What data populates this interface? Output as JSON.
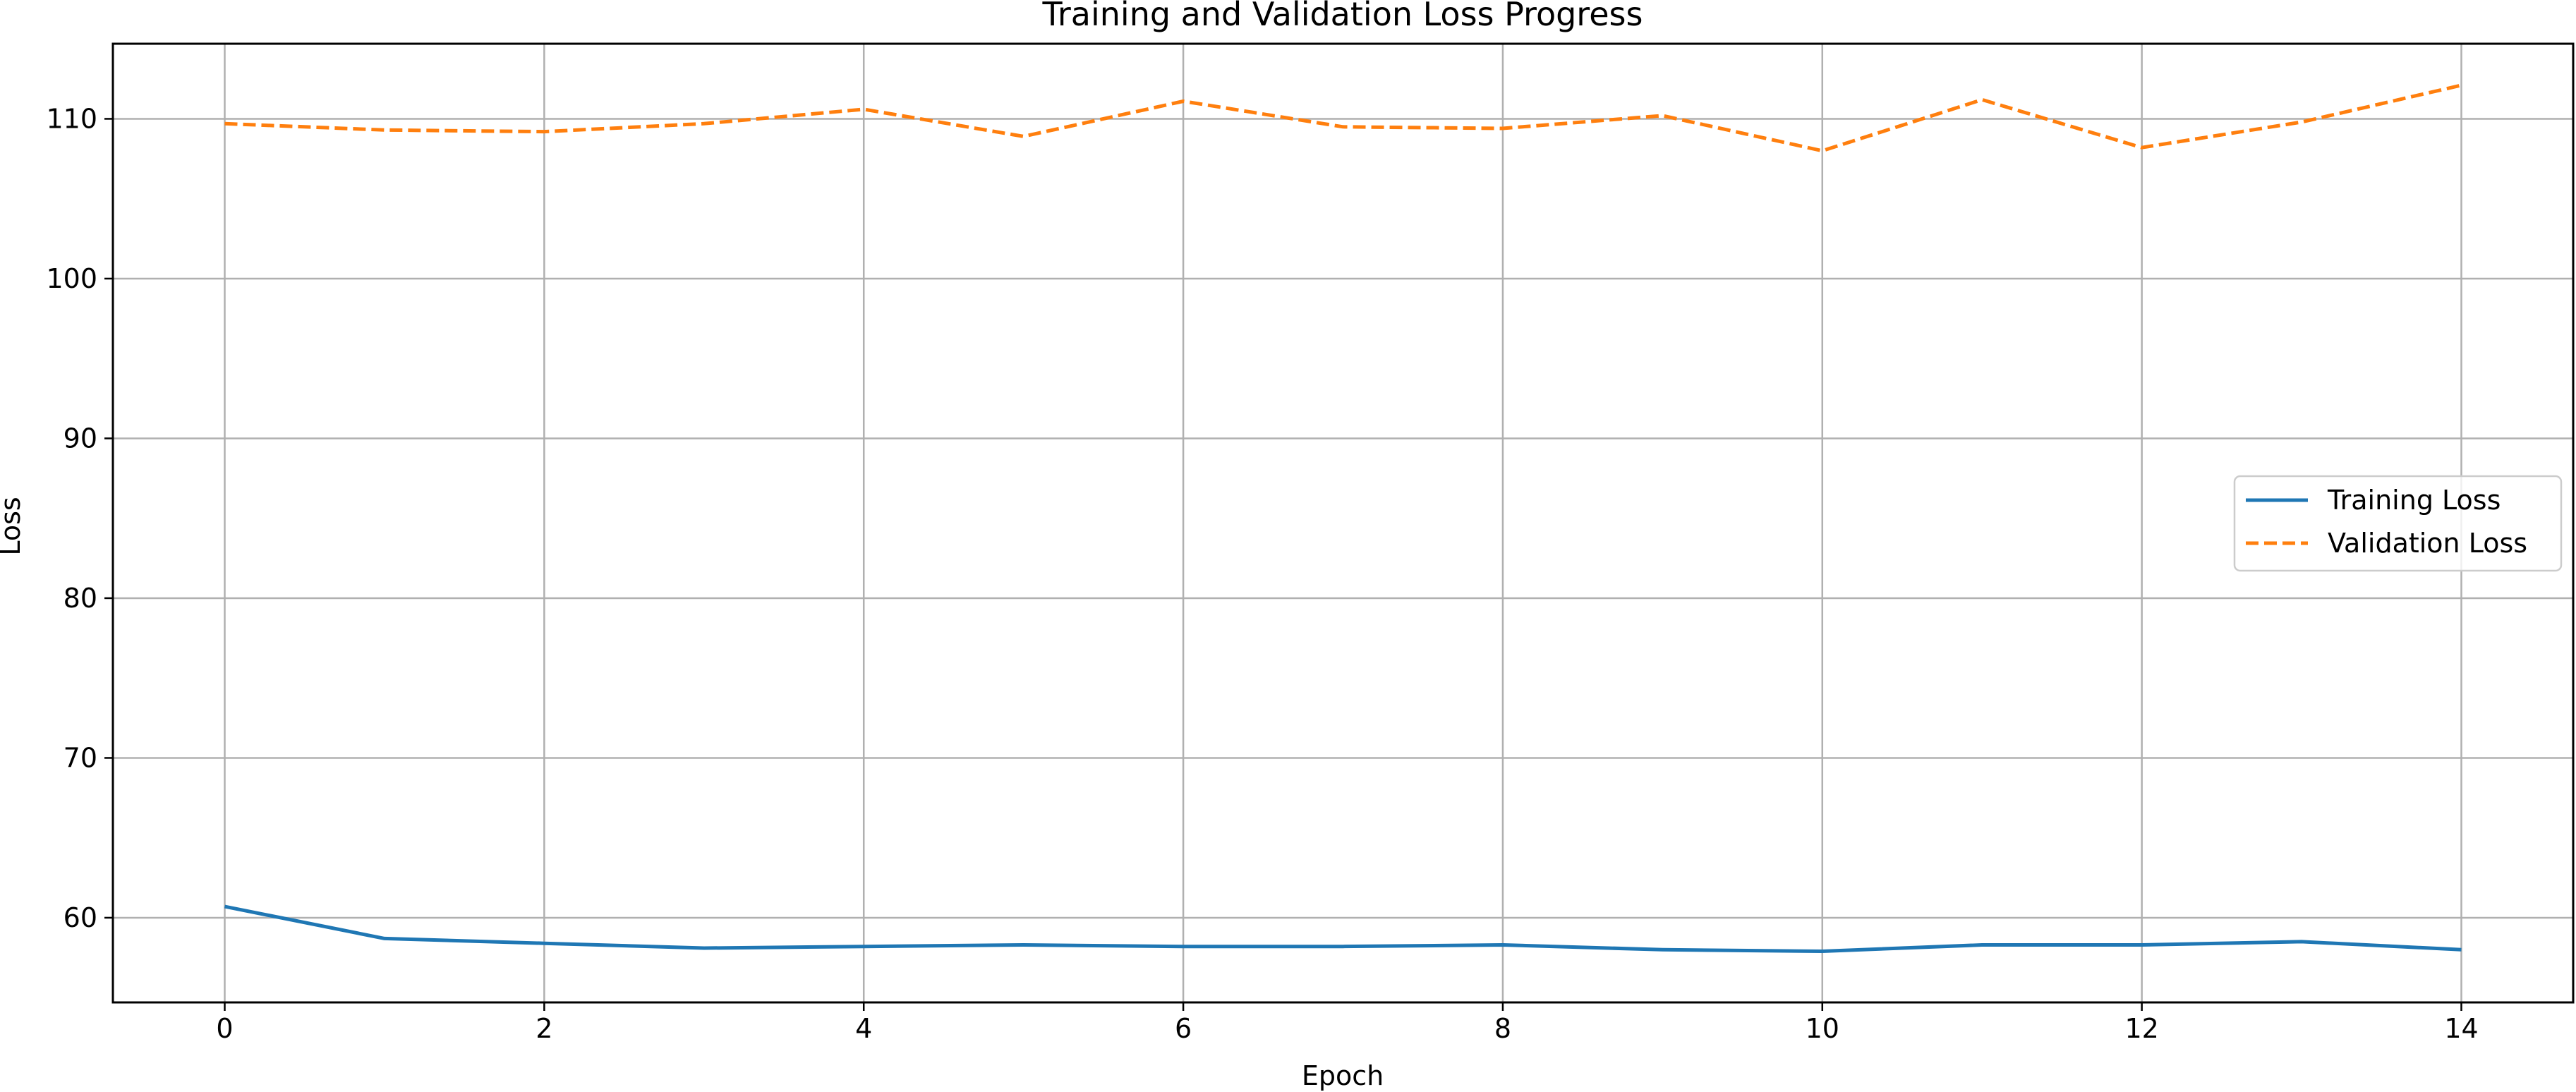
{
  "chart_data": {
    "type": "line",
    "title": "Training and Validation Loss Progress",
    "xlabel": "Epoch",
    "ylabel": "Loss",
    "x": [
      0,
      1,
      2,
      3,
      4,
      5,
      6,
      7,
      8,
      9,
      10,
      11,
      12,
      13,
      14
    ],
    "xlim": [
      -0.7,
      14.7
    ],
    "ylim": [
      54.7,
      114.7
    ],
    "xticks": [
      0,
      2,
      4,
      6,
      8,
      10,
      12,
      14
    ],
    "yticks": [
      60,
      70,
      80,
      90,
      100,
      110
    ],
    "grid": true,
    "legend_position": "center-right",
    "series": [
      {
        "name": "Training Loss",
        "color": "#1f77b4",
        "style": "solid",
        "values": [
          60.7,
          58.7,
          58.4,
          58.1,
          58.2,
          58.3,
          58.2,
          58.2,
          58.3,
          58.0,
          57.9,
          58.3,
          58.3,
          58.5,
          58.0
        ]
      },
      {
        "name": "Validation Loss",
        "color": "#ff7f0e",
        "style": "dashed",
        "values": [
          109.7,
          109.3,
          109.2,
          109.7,
          110.6,
          108.9,
          111.1,
          109.5,
          109.4,
          110.2,
          108.0,
          111.2,
          108.2,
          109.8,
          112.1
        ]
      }
    ]
  }
}
